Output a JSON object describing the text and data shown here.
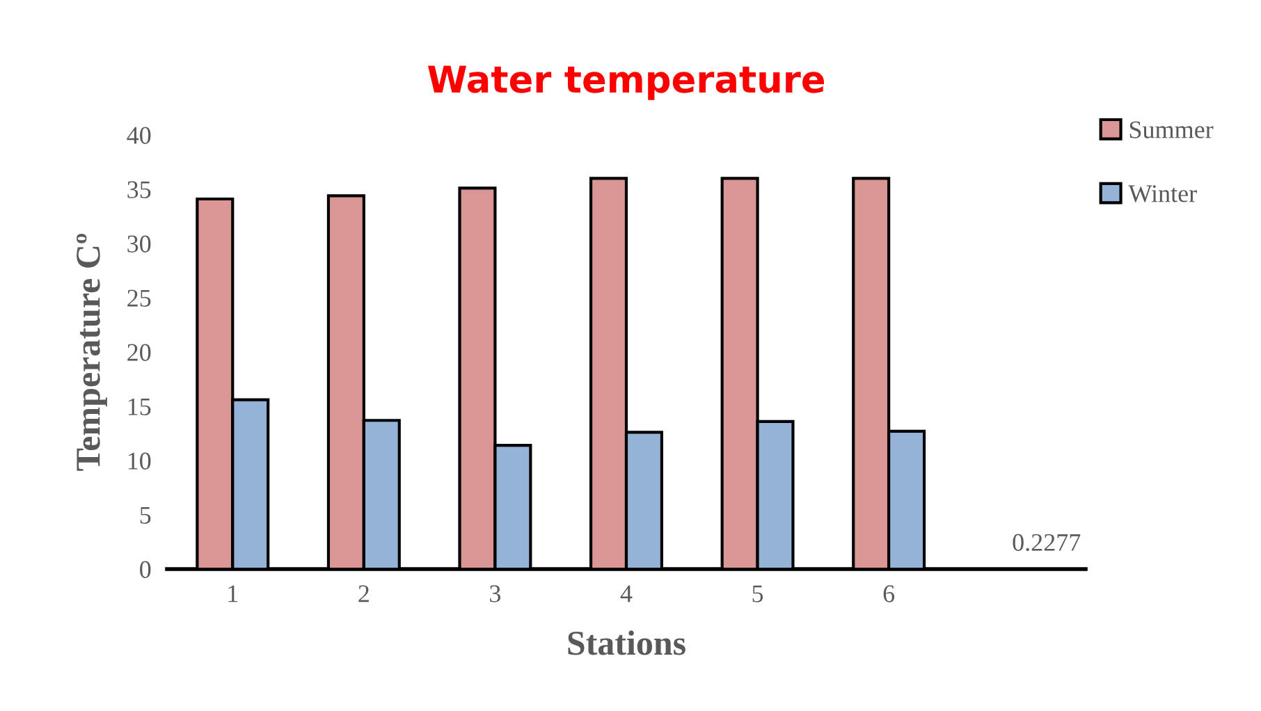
{
  "chart_data": {
    "type": "bar",
    "title": "Water temperature",
    "xlabel": "Stations",
    "ylabel": "Temperature Cº",
    "categories": [
      "1",
      "2",
      "3",
      "4",
      "5",
      "6",
      null
    ],
    "series": [
      {
        "name": "Summer",
        "color": "#da9694",
        "values": [
          34.1,
          34.4,
          35.1,
          36.0,
          36.0,
          36.0,
          null
        ]
      },
      {
        "name": "Winter",
        "color": "#95b3d7",
        "values": [
          15.6,
          13.7,
          11.4,
          12.6,
          13.6,
          12.7,
          null
        ]
      }
    ],
    "ylim": [
      0,
      40
    ],
    "yticks": [
      0,
      5,
      10,
      15,
      20,
      25,
      30,
      35,
      40
    ],
    "grid": false,
    "legend": "top right",
    "annotations": [
      "0.2277"
    ]
  }
}
